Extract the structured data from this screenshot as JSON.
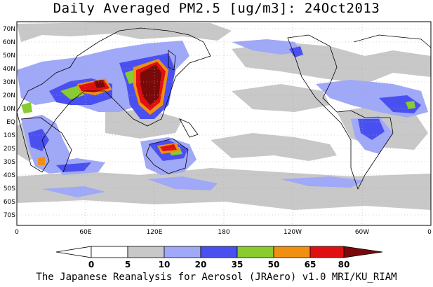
{
  "title": "Daily Averaged PM2.5 [ug/m3]: 24Oct2013",
  "footer": "The Japanese Reanalysis for Aerosol (JRAero) v1.0 MRI/KU_RIAM",
  "lat_labels": [
    "70N",
    "60N",
    "50N",
    "40N",
    "30N",
    "20N",
    "10N",
    "EQ",
    "10S",
    "20S",
    "30S",
    "40S",
    "50S",
    "60S",
    "70S"
  ],
  "lon_labels": [
    "0",
    "60E",
    "120E",
    "180",
    "120W",
    "60W",
    "0"
  ],
  "colorbar": {
    "ticks": [
      "0",
      "5",
      "10",
      "20",
      "35",
      "50",
      "65",
      "80"
    ],
    "colors": [
      "#ffffff",
      "#ffffff",
      "#c8c8c8",
      "#a0a8f8",
      "#4a50f0",
      "#88cc30",
      "#f09010",
      "#e01010",
      "#7a0a0a"
    ]
  },
  "map_colors": {
    "ocean": "#ffffff",
    "level_5": "#c8c8c8",
    "level_10": "#a0a8f8",
    "level_20": "#4a50f0",
    "level_35": "#88cc30",
    "level_50": "#f09010",
    "level_65": "#e01010",
    "level_80": "#7a0a0a",
    "coast": "#000000",
    "grid": "#aaaaaa"
  }
}
